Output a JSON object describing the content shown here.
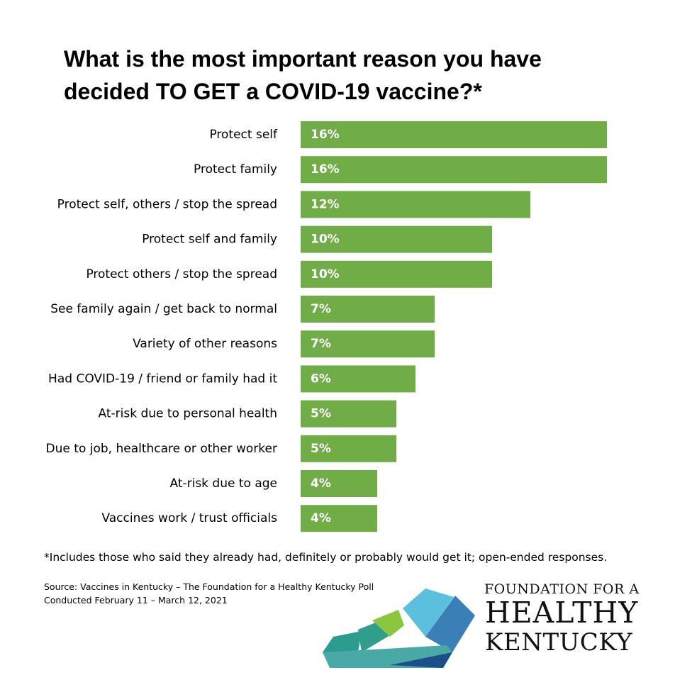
{
  "chart_data": {
    "type": "bar",
    "orientation": "horizontal",
    "title": "What is the most important reason you have decided TO GET a COVID-19 vaccine?*",
    "categories": [
      "Protect self",
      "Protect family",
      "Protect self, others / stop the spread",
      "Protect self and family",
      "Protect others / stop the spread",
      "See family again / get back to normal",
      "Variety of other reasons",
      "Had COVID-19 / friend or family had it",
      "At-risk due to personal health",
      "Due to job, healthcare or other worker",
      "At-risk due to age",
      "Vaccines work / trust officials"
    ],
    "values": [
      16,
      16,
      12,
      10,
      10,
      7,
      7,
      6,
      5,
      5,
      4,
      4
    ],
    "value_labels": [
      "16%",
      "16%",
      "12%",
      "10%",
      "10%",
      "7%",
      "7%",
      "6%",
      "5%",
      "5%",
      "4%",
      "4%"
    ],
    "unit": "%",
    "bar_color": "#70ad47",
    "xlim": [
      0,
      16
    ],
    "grid": false,
    "legend": "none"
  },
  "footnote": "*Includes those who said they already had, definitely or probably would get it; open-ended responses.",
  "source": {
    "line1": "Source: Vaccines in Kentucky – The Foundation for a Healthy Kentucky Poll",
    "line2": "Conducted February 11 – March 12, 2021"
  },
  "logo": {
    "line1": "FOUNDATION FOR A",
    "line2": "HEALTHY",
    "line3": "KENTUCKY",
    "colors": [
      "#2a9d8f",
      "#8cc63f",
      "#5bc0de",
      "#3a7fb5",
      "#1d4e89"
    ]
  }
}
